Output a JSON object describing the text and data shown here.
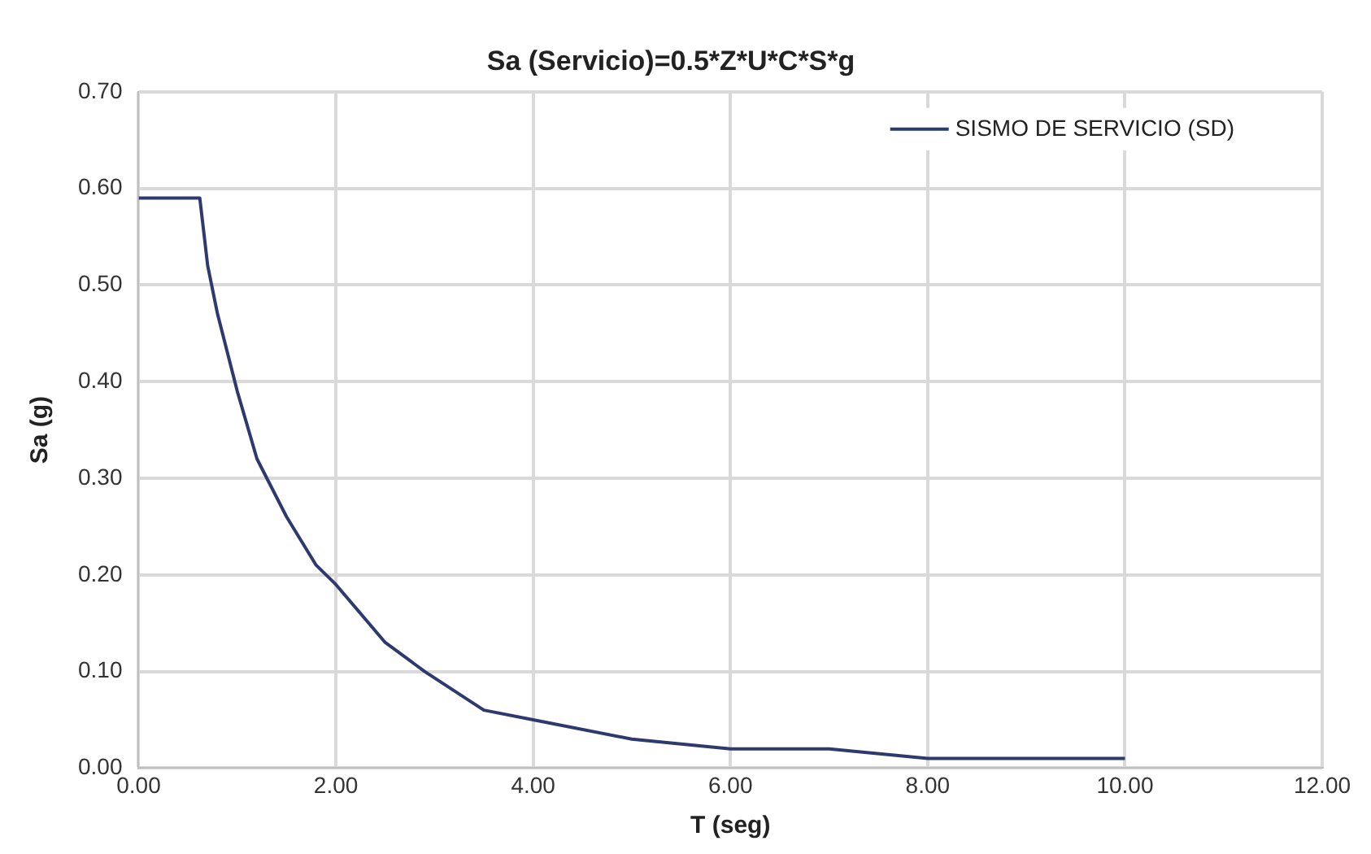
{
  "chart_data": {
    "type": "line",
    "title": "Sa (Servicio)=0.5*Z*U*C*S*g",
    "xlabel": "T (seg)",
    "ylabel": "Sa (g)",
    "x": [
      0,
      0.62,
      0.7,
      0.8,
      1.0,
      1.2,
      1.5,
      1.8,
      2.0,
      2.5,
      2.9,
      3.5,
      4.0,
      5.0,
      6.0,
      7.0,
      8.0,
      9.0,
      10.0
    ],
    "series": [
      {
        "name": "SISMO DE SERVICIO (SD)",
        "color": "#2e3a6e",
        "values": [
          0.59,
          0.59,
          0.52,
          0.47,
          0.39,
          0.32,
          0.26,
          0.21,
          0.19,
          0.13,
          0.1,
          0.06,
          0.05,
          0.03,
          0.02,
          0.02,
          0.01,
          0.01,
          0.01
        ]
      }
    ],
    "xlim": [
      0,
      12
    ],
    "xticks": [
      {
        "value": 0,
        "label": "0.00"
      },
      {
        "value": 2,
        "label": "2.00"
      },
      {
        "value": 4,
        "label": "4.00"
      },
      {
        "value": 6,
        "label": "6.00"
      },
      {
        "value": 8,
        "label": "8.00"
      },
      {
        "value": 10,
        "label": "10.00"
      },
      {
        "value": 12,
        "label": "12.00"
      }
    ],
    "ylim": [
      0,
      0.7
    ],
    "yticks": [
      {
        "value": 0,
        "label": "0.00"
      },
      {
        "value": 0.1,
        "label": "0.10"
      },
      {
        "value": 0.2,
        "label": "0.20"
      },
      {
        "value": 0.3,
        "label": "0.30"
      },
      {
        "value": 0.4,
        "label": "0.40"
      },
      {
        "value": 0.5,
        "label": "0.50"
      },
      {
        "value": 0.6,
        "label": "0.60"
      },
      {
        "value": 0.7,
        "label": "0.70"
      }
    ],
    "grid": true,
    "legend": "top right",
    "marker": "none",
    "line_style": "solid"
  }
}
